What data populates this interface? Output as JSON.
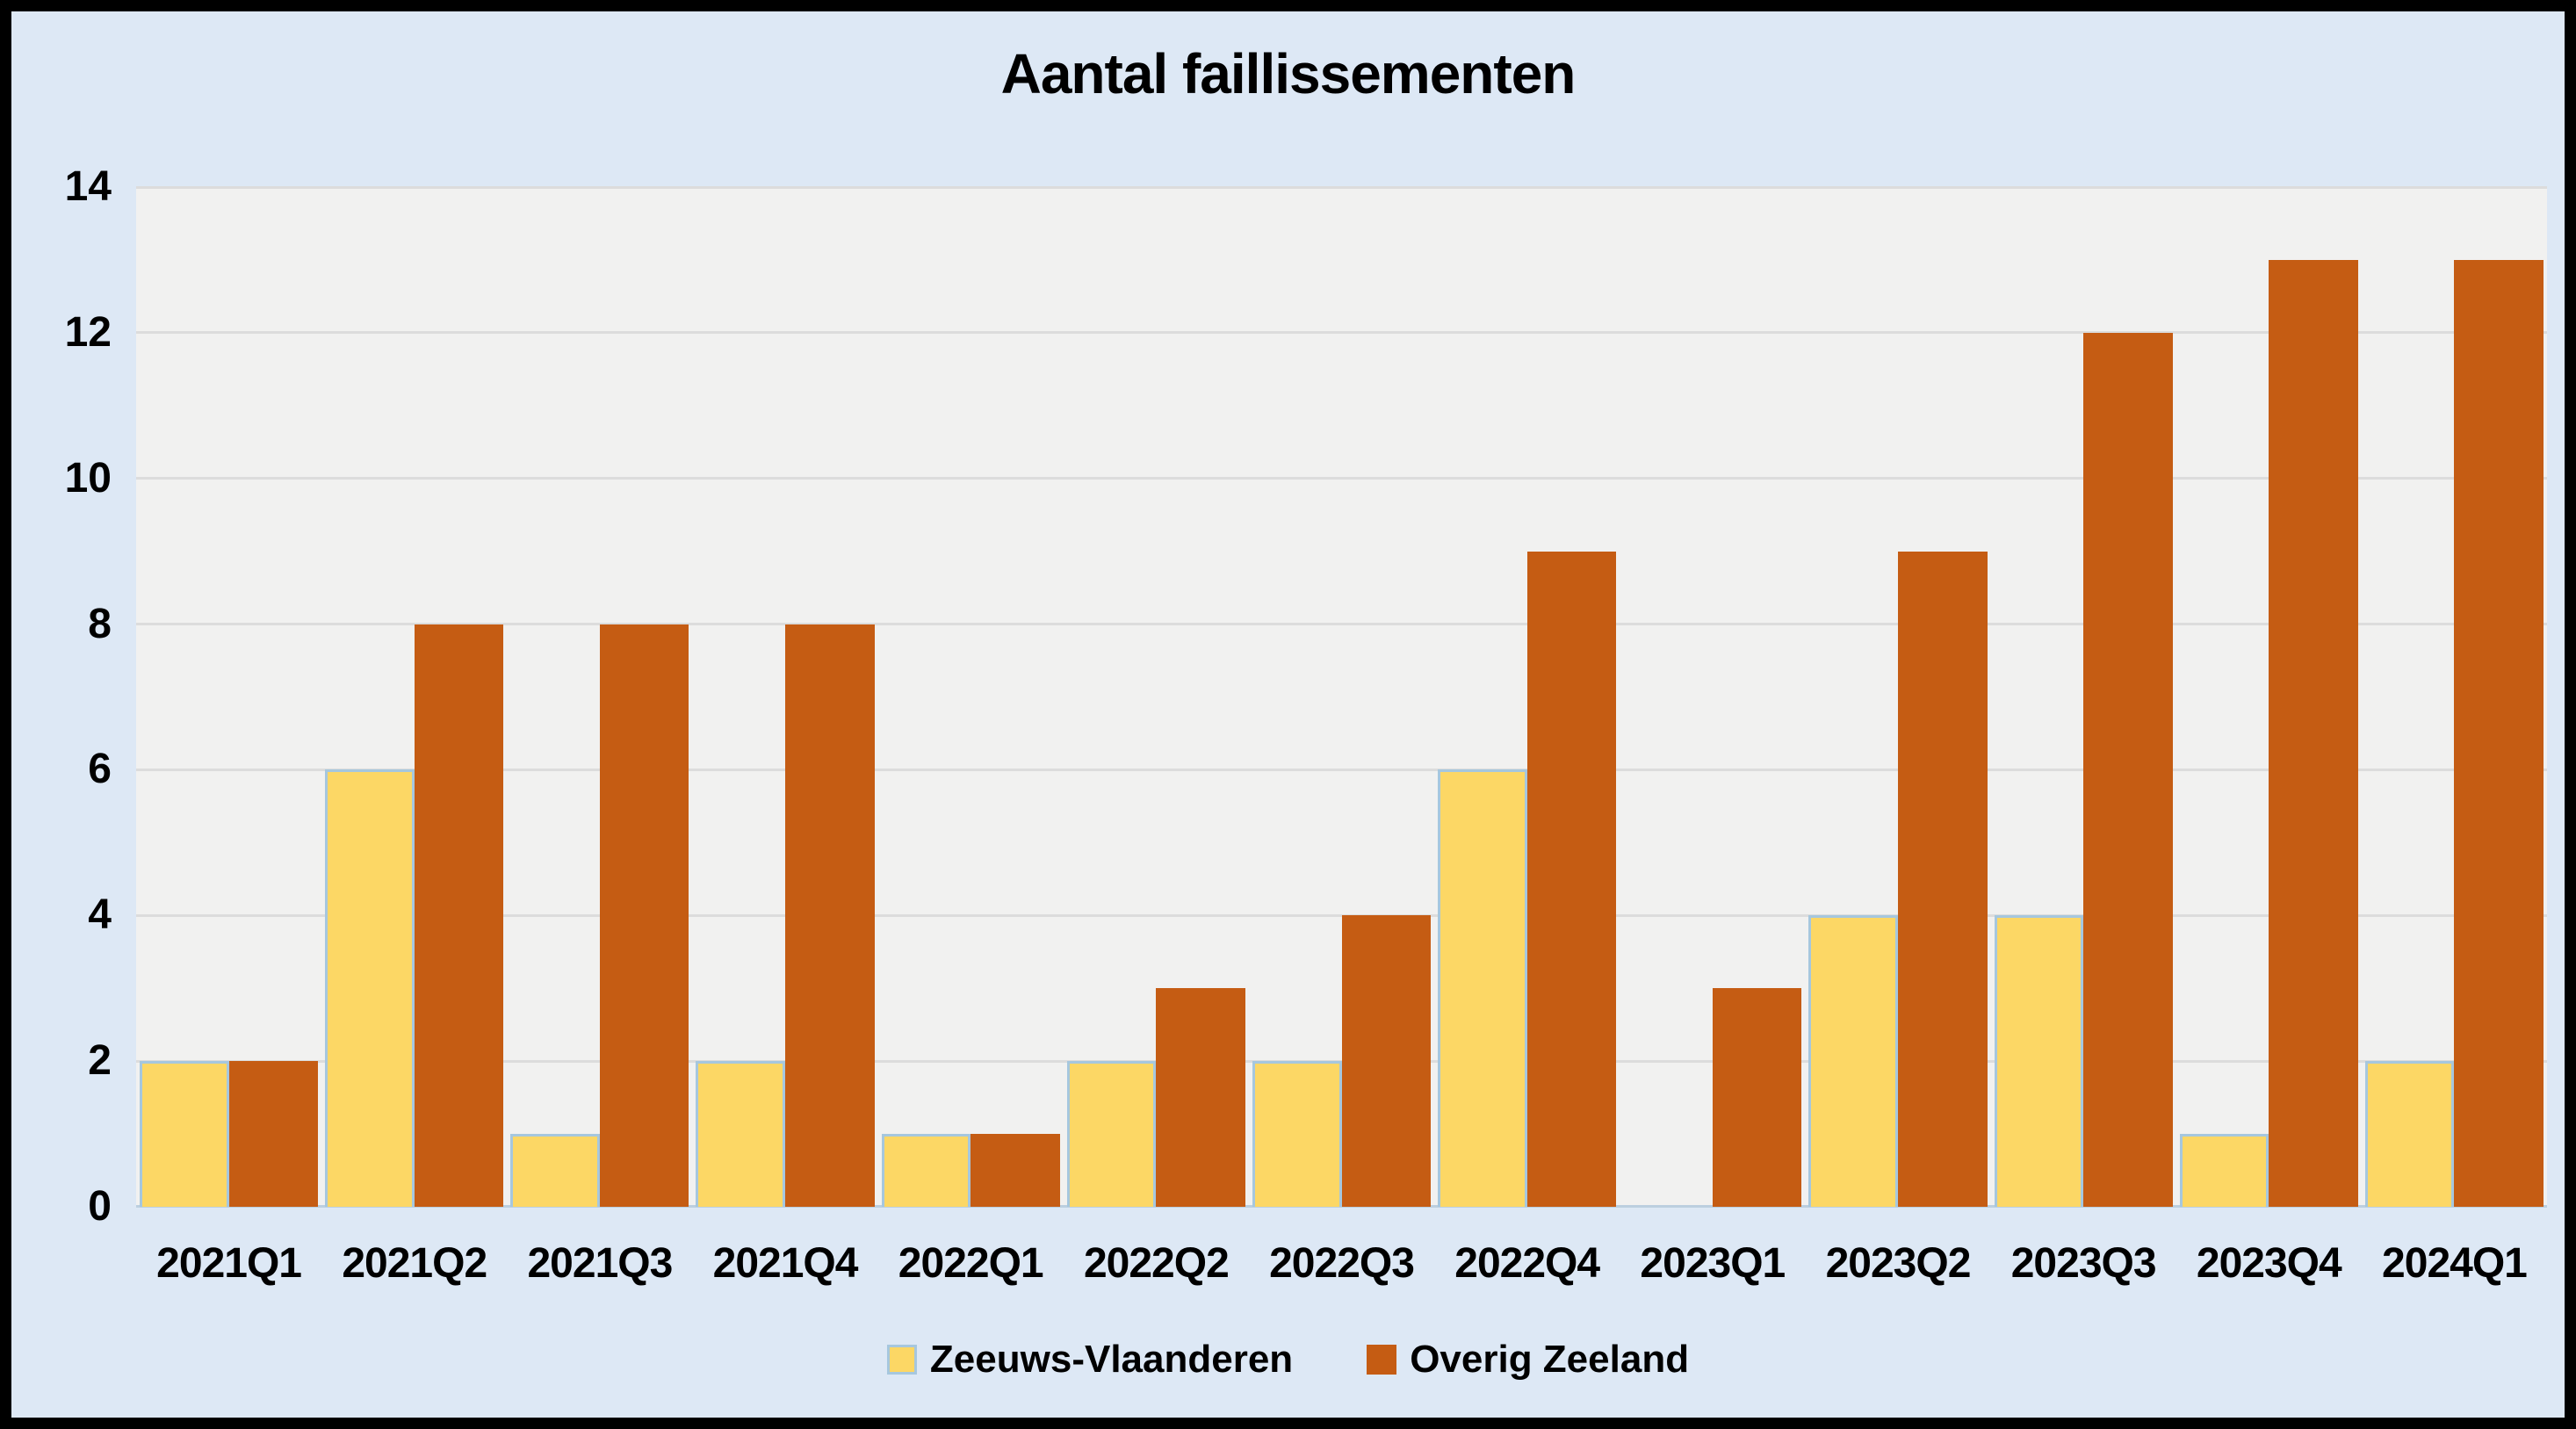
{
  "title": "Aantal faillissementen",
  "colors": {
    "frame_border": "#000000",
    "background": "#dde8f5",
    "plot_background": "#f1f1f0",
    "gridline": "#dcdcdc",
    "axis_line": "#bccfdf",
    "text": "#000000"
  },
  "chart_data": {
    "type": "bar",
    "title": "Aantal faillissementen",
    "categories": [
      "2021Q1",
      "2021Q2",
      "2021Q3",
      "2021Q4",
      "2022Q1",
      "2022Q2",
      "2022Q3",
      "2022Q4",
      "2023Q1",
      "2023Q2",
      "2023Q3",
      "2023Q4",
      "2024Q1"
    ],
    "series": [
      {
        "name": "Zeeuws-Vlaanderen",
        "color": "#fcd765",
        "border_color": "#a6c7de",
        "values": [
          2,
          6,
          1,
          2,
          1,
          2,
          2,
          6,
          0,
          4,
          4,
          1,
          2
        ]
      },
      {
        "name": "Overig Zeeland",
        "color": "#c55c13",
        "border_color": "#c55c13",
        "values": [
          2,
          8,
          8,
          8,
          1,
          3,
          4,
          9,
          3,
          9,
          12,
          13,
          13
        ]
      }
    ],
    "ylim": [
      0,
      14
    ],
    "yticks": [
      "0",
      "2",
      "4",
      "6",
      "8",
      "10",
      "12",
      "14"
    ],
    "grid": true,
    "legend_position": "bottom"
  }
}
